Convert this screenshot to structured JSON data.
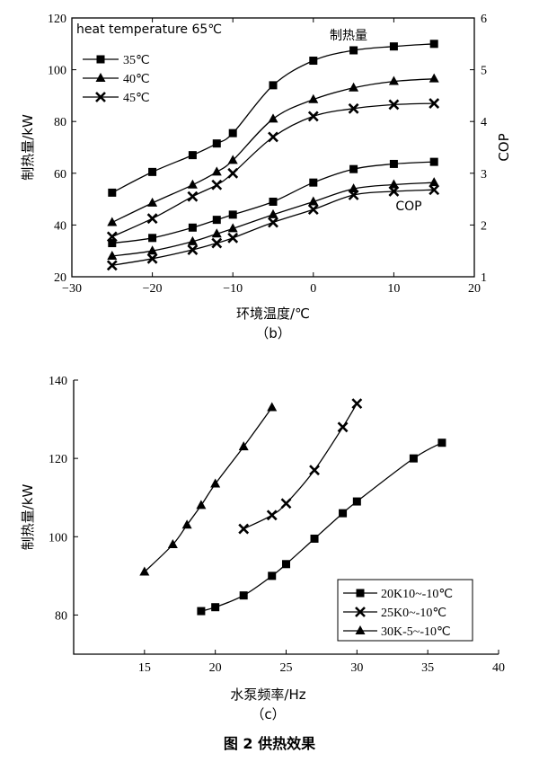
{
  "caption": "图 2  供热效果",
  "chart_data": [
    {
      "type": "line",
      "sublabel": "（b）",
      "annotation": "heat temperature 65℃",
      "xlabel": "环境温度/℃",
      "ylabel": "制热量/kW",
      "y2label": "COP",
      "xlim": [
        -30,
        20
      ],
      "ylim": [
        20,
        120
      ],
      "y2lim": [
        1,
        6
      ],
      "xticks": [
        -30,
        -20,
        -10,
        0,
        10,
        20
      ],
      "yticks": [
        20,
        40,
        60,
        80,
        100,
        120
      ],
      "y2ticks": [
        1,
        2,
        3,
        4,
        5,
        6
      ],
      "group_labels": {
        "heat": "制热量",
        "cop": "COP"
      },
      "legend_position": "top-left",
      "x": [
        -25,
        -20,
        -15,
        -12,
        -10,
        -5,
        0,
        5,
        10,
        15
      ],
      "series": [
        {
          "name": "35℃",
          "marker": "square",
          "axis": "left",
          "group": "heat",
          "values": [
            52.5,
            60.5,
            67,
            71.5,
            75.5,
            94,
            103.5,
            107.5,
            109,
            110
          ]
        },
        {
          "name": "40℃",
          "marker": "triangle",
          "axis": "left",
          "group": "heat",
          "values": [
            41,
            48.5,
            55.5,
            60.5,
            65,
            81,
            88.5,
            93,
            95.5,
            96.5
          ]
        },
        {
          "name": "45℃",
          "marker": "x",
          "axis": "left",
          "group": "heat",
          "values": [
            35.5,
            42.5,
            51,
            55.5,
            60,
            74,
            82,
            85,
            86.5,
            87
          ]
        },
        {
          "name": "35℃",
          "marker": "square",
          "axis": "right",
          "group": "cop",
          "values": [
            1.65,
            1.75,
            1.95,
            2.1,
            2.2,
            2.45,
            2.82,
            3.08,
            3.18,
            3.22
          ]
        },
        {
          "name": "40℃",
          "marker": "triangle",
          "axis": "right",
          "group": "cop",
          "values": [
            1.4,
            1.5,
            1.68,
            1.83,
            1.93,
            2.2,
            2.45,
            2.7,
            2.78,
            2.82
          ]
        },
        {
          "name": "45℃",
          "marker": "x",
          "axis": "right",
          "group": "cop",
          "values": [
            1.22,
            1.35,
            1.52,
            1.65,
            1.75,
            2.05,
            2.3,
            2.58,
            2.65,
            2.68
          ]
        }
      ]
    },
    {
      "type": "line",
      "sublabel": "（c）",
      "xlabel": "水泵频率/Hz",
      "ylabel": "制热量/kW",
      "xlim": [
        10,
        40
      ],
      "ylim": [
        70,
        140
      ],
      "xticks": [
        15,
        20,
        25,
        30,
        35,
        40
      ],
      "yticks": [
        80,
        100,
        120,
        140
      ],
      "legend_position": "bottom-right",
      "series": [
        {
          "name": "20K10~-10℃",
          "marker": "square",
          "x": [
            19,
            20,
            22,
            24,
            25,
            27,
            29,
            30,
            34,
            36
          ],
          "values": [
            81,
            82,
            85,
            90,
            93,
            99.5,
            106,
            109,
            120,
            124
          ]
        },
        {
          "name": "25K0~-10℃",
          "marker": "x",
          "x": [
            22,
            24,
            25,
            27,
            29,
            30
          ],
          "values": [
            102,
            105.5,
            108.5,
            117,
            128,
            134
          ]
        },
        {
          "name": "30K-5~-10℃",
          "marker": "triangle",
          "x": [
            15,
            17,
            18,
            19,
            20,
            22,
            24
          ],
          "values": [
            91,
            98,
            103,
            108,
            113.5,
            123,
            133
          ]
        }
      ]
    }
  ]
}
